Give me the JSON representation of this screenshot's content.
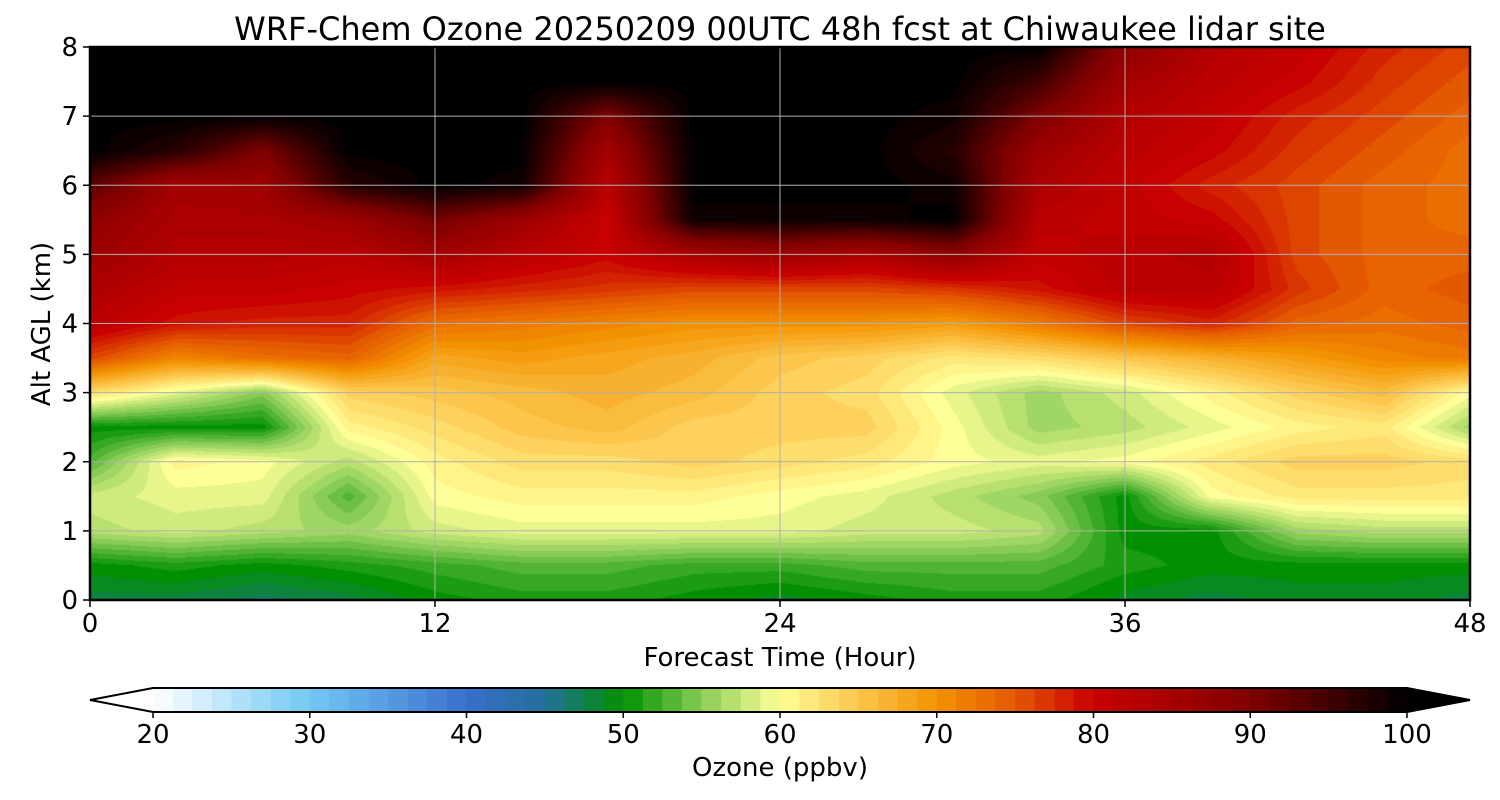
{
  "chart_data": {
    "type": "heatmap",
    "title": "WRF-Chem Ozone  20250209 00UTC 48h fcst at Chiwaukee lidar site",
    "xlabel": "Forecast Time (Hour)",
    "ylabel": "Alt AGL (km)",
    "xlim": [
      0,
      48
    ],
    "ylim": [
      0,
      8
    ],
    "xticks": [
      "0",
      "12",
      "24",
      "36",
      "48"
    ],
    "yticks": [
      "0",
      "1",
      "2",
      "3",
      "4",
      "5",
      "6",
      "7",
      "8"
    ],
    "grid": true,
    "x": [
      0,
      3,
      6,
      9,
      12,
      15,
      18,
      21,
      24,
      27,
      30,
      33,
      36,
      39,
      42,
      45,
      48
    ],
    "y": [
      0,
      0.5,
      1,
      1.5,
      2,
      2.5,
      3,
      3.5,
      4,
      4.5,
      5,
      5.5,
      6,
      6.5,
      7,
      7.5,
      8
    ],
    "z": [
      [
        48,
        48,
        47,
        48,
        50,
        51,
        51,
        50,
        49,
        50,
        51,
        51,
        49,
        48,
        49,
        49,
        48
      ],
      [
        50,
        51,
        50,
        51,
        52,
        53,
        53,
        52,
        52,
        53,
        53,
        53,
        51,
        50,
        50,
        50,
        50
      ],
      [
        57,
        58,
        57,
        56,
        58,
        59,
        59,
        59,
        59,
        58,
        58,
        57,
        50,
        50,
        56,
        57,
        57
      ],
      [
        58,
        59,
        59,
        53,
        60,
        61,
        61,
        61,
        60,
        59,
        57,
        55,
        50,
        60,
        62,
        62,
        62
      ],
      [
        53,
        61,
        60,
        57,
        61,
        63,
        63,
        64,
        63,
        62,
        60,
        59,
        60,
        62,
        64,
        64,
        63
      ],
      [
        50,
        50,
        50,
        61,
        63,
        65,
        66,
        64,
        64,
        64,
        60,
        56,
        57,
        59,
        61,
        62,
        56
      ],
      [
        63,
        59,
        55,
        64,
        65,
        66,
        67,
        66,
        64,
        63,
        59,
        56,
        58,
        61,
        64,
        66,
        60
      ],
      [
        76,
        71,
        73,
        74,
        68,
        69,
        68,
        67,
        65,
        64,
        62,
        63,
        65,
        67,
        69,
        71,
        72
      ],
      [
        82,
        79,
        78,
        78,
        73,
        72,
        71,
        70,
        70,
        70,
        69,
        72,
        76,
        78,
        74,
        73,
        74
      ],
      [
        84,
        81,
        81,
        80,
        79,
        78,
        77,
        76,
        76,
        76,
        77,
        79,
        82,
        82,
        77,
        74,
        75
      ],
      [
        86,
        83,
        83,
        82,
        85,
        82,
        80,
        84,
        86,
        84,
        88,
        81,
        82,
        83,
        76,
        74,
        74
      ],
      [
        88,
        84,
        84,
        86,
        91,
        86,
        80,
        99,
        99,
        99,
        100,
        82,
        81,
        80,
        76,
        74,
        73
      ],
      [
        93,
        85,
        86,
        97,
        100,
        99,
        82,
        100,
        100,
        100,
        99,
        84,
        81,
        78,
        76,
        74,
        73
      ],
      [
        100,
        97,
        90,
        100,
        100,
        100,
        85,
        100,
        100,
        100,
        97,
        86,
        82,
        80,
        77,
        75,
        73
      ],
      [
        100,
        100,
        100,
        100,
        100,
        100,
        90,
        100,
        100,
        100,
        99,
        90,
        83,
        81,
        78,
        76,
        74
      ],
      [
        100,
        100,
        100,
        100,
        100,
        100,
        100,
        100,
        100,
        100,
        100,
        95,
        85,
        82,
        80,
        77,
        75
      ],
      [
        100,
        100,
        100,
        100,
        100,
        100,
        100,
        100,
        100,
        100,
        100,
        100,
        88,
        83,
        81,
        78,
        76
      ]
    ],
    "colorbar": {
      "label": "Ozone  (ppbv)",
      "min": 20,
      "max": 100,
      "ticks": [
        "20",
        "30",
        "40",
        "50",
        "60",
        "70",
        "80",
        "90",
        "100"
      ],
      "extend": "both",
      "min_color": "#ffffff",
      "max_color": "#000000",
      "stops": [
        {
          "value": 20,
          "color": "#ffffff"
        },
        {
          "value": 30,
          "color": "#72c8f4"
        },
        {
          "value": 40,
          "color": "#3a6fcc"
        },
        {
          "value": 45,
          "color": "#22709a"
        },
        {
          "value": 50,
          "color": "#009000"
        },
        {
          "value": 55,
          "color": "#88cc55"
        },
        {
          "value": 60,
          "color": "#ffff99"
        },
        {
          "value": 65,
          "color": "#fcc64c"
        },
        {
          "value": 70,
          "color": "#f39200"
        },
        {
          "value": 75,
          "color": "#e45800"
        },
        {
          "value": 80,
          "color": "#c80000"
        },
        {
          "value": 90,
          "color": "#800000"
        },
        {
          "value": 100,
          "color": "#000000"
        }
      ]
    }
  }
}
